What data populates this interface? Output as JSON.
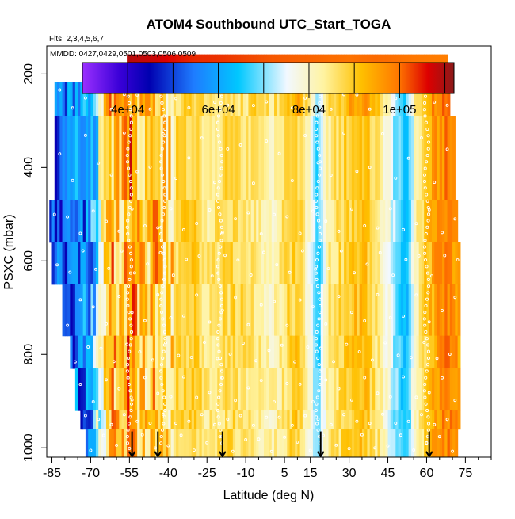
{
  "chart_data": {
    "type": "heatmap",
    "title": "ATOM4 Southbound UTC_Start_TOGA",
    "flights_note": "Flts: 2,3,4,5,6,7",
    "dates_note": "MMDD: 0427,0429,0501,0503,0506,0509",
    "xlabel": "Latitude (deg N)",
    "ylabel": "PSXC (mbar)",
    "xlim": [
      -87,
      85
    ],
    "ylim": [
      1020,
      140
    ],
    "y_reversed": true,
    "x_ticks": [
      -85,
      -70,
      -55,
      -40,
      -25,
      -10,
      5,
      15,
      30,
      45,
      60,
      75
    ],
    "x_minor_ticks": [
      -80,
      -75,
      -65,
      -60,
      -50,
      -45,
      -35,
      -30,
      -20,
      -15,
      -5,
      0,
      10,
      20,
      25,
      35,
      40,
      50,
      55,
      65,
      70,
      80,
      85
    ],
    "y_ticks": [
      200,
      400,
      600,
      800,
      1000
    ],
    "colorbar": {
      "min": 30000,
      "max": 112000,
      "tick_values": [
        40000,
        60000,
        80000,
        100000
      ],
      "tick_labels": [
        "4e+04",
        "6e+04",
        "8e+04",
        "1e+05"
      ],
      "boundaries": [
        30000,
        40000,
        50000,
        60000,
        70000,
        80000,
        90000,
        100000,
        110000
      ],
      "color_stops": [
        [
          0.0,
          "#9b30ff"
        ],
        [
          0.1,
          "#3a00d8"
        ],
        [
          0.18,
          "#0000b0"
        ],
        [
          0.3,
          "#1e7cff"
        ],
        [
          0.42,
          "#00c8ff"
        ],
        [
          0.55,
          "#f2f8ff"
        ],
        [
          0.65,
          "#fff3a0"
        ],
        [
          0.75,
          "#ffc000"
        ],
        [
          0.85,
          "#ff7800"
        ],
        [
          0.93,
          "#dd0000"
        ],
        [
          1.0,
          "#8b1a1a"
        ]
      ]
    },
    "utc_profile": {
      "lat": [
        -85,
        -70,
        -66,
        -62,
        -58,
        -55,
        -50,
        -45,
        -40,
        -30,
        -25,
        -15,
        -5,
        0,
        5,
        10,
        15,
        18,
        22,
        28,
        35,
        42,
        48,
        52,
        56,
        60,
        64,
        68,
        72
      ],
      "value": [
        50000,
        58000,
        78000,
        94000,
        88000,
        98000,
        88000,
        92000,
        86000,
        90000,
        84000,
        88000,
        84000,
        81000,
        86000,
        90000,
        78000,
        65000,
        84000,
        88000,
        92000,
        84000,
        70000,
        62000,
        82000,
        90000,
        96000,
        98000,
        96000
      ]
    },
    "upper_band": {
      "lat_range": [
        -56,
        68
      ],
      "pmin": 158,
      "pmax": 218,
      "lat": [
        -56,
        -45,
        -40,
        -30,
        -20,
        -10,
        0,
        10,
        20,
        30,
        40,
        50,
        60,
        68
      ],
      "value": [
        109000,
        107500,
        106000,
        104000,
        103500,
        102500,
        101500,
        101000,
        100500,
        100000,
        100500,
        100000,
        99500,
        99000
      ]
    },
    "layers": [
      {
        "pmin": 218,
        "pmax": 290,
        "lat_start": -84,
        "lat_end": 69
      },
      {
        "pmin": 290,
        "pmax": 470,
        "lat_start": -84,
        "lat_end": 71
      },
      {
        "pmin": 470,
        "pmax": 560,
        "lat_start": -86,
        "lat_end": 72
      },
      {
        "pmin": 560,
        "pmax": 650,
        "lat_start": -85,
        "lat_end": 73
      },
      {
        "pmin": 650,
        "pmax": 760,
        "lat_start": -81,
        "lat_end": 73
      },
      {
        "pmin": 760,
        "pmax": 830,
        "lat_start": -78,
        "lat_end": 73
      },
      {
        "pmin": 830,
        "pmax": 920,
        "lat_start": -76,
        "lat_end": 73
      },
      {
        "pmin": 920,
        "pmax": 960,
        "lat_start": -74,
        "lat_end": 73
      },
      {
        "pmin": 960,
        "pmax": 1020,
        "lat_start": -72,
        "lat_end": 72
      }
    ],
    "vertical_profile_lats": [
      -55,
      -42,
      -20,
      18,
      60
    ],
    "arrow_latitudes": [
      -54,
      -44,
      -19,
      19,
      61
    ]
  }
}
